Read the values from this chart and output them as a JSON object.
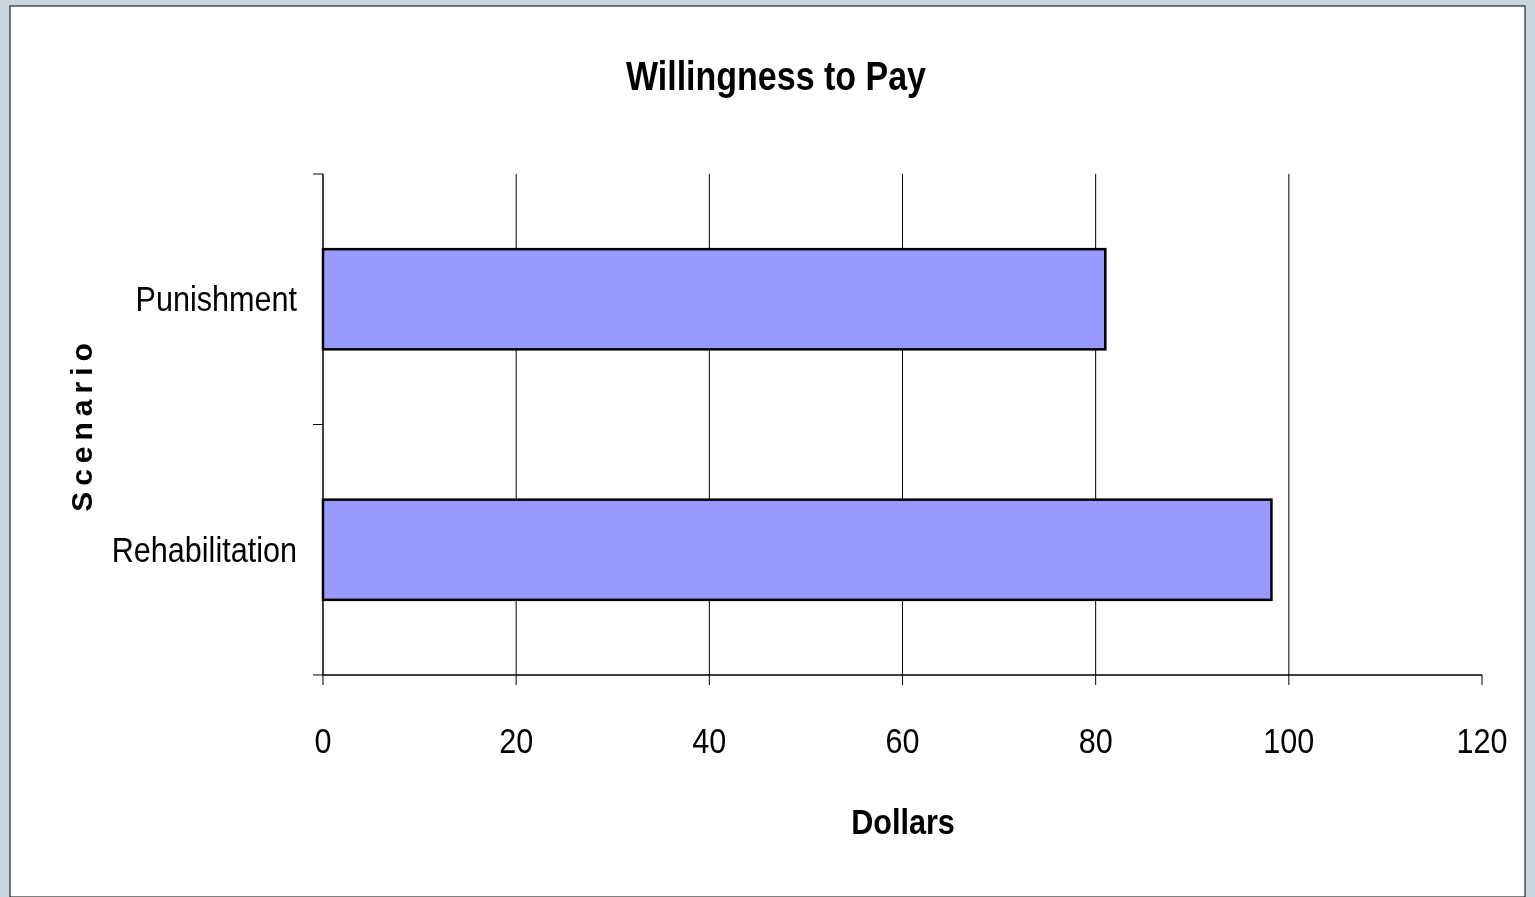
{
  "chart_data": {
    "type": "bar",
    "orientation": "horizontal",
    "title": "Willingness to Pay",
    "xlabel": "Dollars",
    "ylabel": "Scenario",
    "categories": [
      "Punishment",
      "Rehabilitation"
    ],
    "series": [
      {
        "color": "#9999ff",
        "values": [
          81,
          98.2
        ]
      }
    ],
    "xlim": [
      0,
      120
    ],
    "xticks": [
      0,
      20,
      40,
      60,
      80,
      100,
      120
    ],
    "grid": "x"
  }
}
